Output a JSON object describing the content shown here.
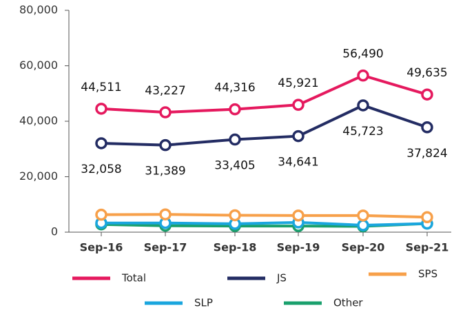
{
  "chart_data": {
    "type": "line",
    "categories": [
      "Sep-16",
      "Sep-17",
      "Sep-18",
      "Sep-19",
      "Sep-20",
      "Sep-21"
    ],
    "ylim": [
      0,
      80000
    ],
    "yticks": [
      0,
      {
        "value": 20000,
        "label": "20,000"
      },
      {
        "value": 40000,
        "label": "40,000"
      },
      {
        "value": 60000,
        "label": "60,000"
      },
      {
        "value": 80000,
        "label": "80,000"
      }
    ],
    "grid": false,
    "legend": "bottom",
    "series": [
      {
        "name": "Total",
        "color": "#e5195e",
        "values": [
          44511,
          43227,
          44316,
          45921,
          56490,
          49635
        ],
        "value_labels": [
          "44,511",
          "43,227",
          "44,316",
          "45,921",
          "56,490",
          "49,635"
        ]
      },
      {
        "name": "JS",
        "color": "#232c63",
        "values": [
          32058,
          31389,
          33405,
          34641,
          45723,
          37824
        ],
        "value_labels": [
          "32,058",
          "31,389",
          "33,405",
          "34,641",
          "45,723",
          "37,824"
        ]
      },
      {
        "name": "SPS",
        "color": "#f7a04a",
        "values": [
          6300,
          6400,
          6100,
          6000,
          6000,
          5400
        ]
      },
      {
        "name": "SLP",
        "color": "#1aa6de",
        "values": [
          3300,
          3300,
          3000,
          3500,
          2500,
          3100
        ]
      },
      {
        "name": "Other",
        "color": "#1aa06d",
        "values": [
          2800,
          2300,
          2200,
          2200,
          2100,
          3100
        ]
      }
    ]
  }
}
